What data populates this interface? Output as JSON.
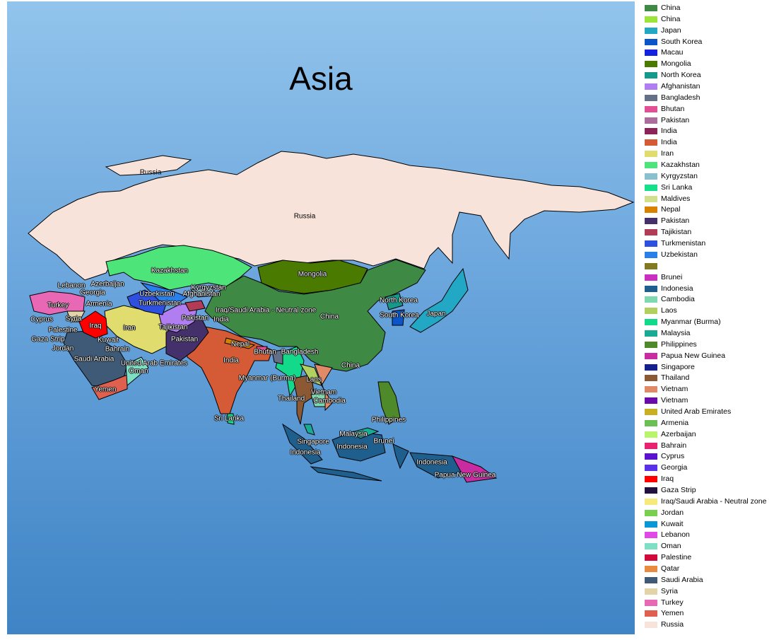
{
  "title": "Asia",
  "legend": {
    "placement": "right",
    "items": [
      {
        "label": "China",
        "color": "#3e8a44"
      },
      {
        "label": "China",
        "color": "#9be53a"
      },
      {
        "label": "Japan",
        "color": "#22a7c5"
      },
      {
        "label": "South Korea",
        "color": "#0a55c8"
      },
      {
        "label": "Macau",
        "color": "#1422e0"
      },
      {
        "label": "Mongolia",
        "color": "#4a7a00"
      },
      {
        "label": "North Korea",
        "color": "#14998a"
      },
      {
        "label": "Afghanistan",
        "color": "#b07ef0"
      },
      {
        "label": "Bangladesh",
        "color": "#656f85"
      },
      {
        "label": "Bhutan",
        "color": "#e24f94"
      },
      {
        "label": "Pakistan",
        "color": "#ac6c9c"
      },
      {
        "label": "India",
        "color": "#8c2358"
      },
      {
        "label": "India",
        "color": "#d45b35"
      },
      {
        "label": "Iran",
        "color": "#e0dd6e"
      },
      {
        "label": "Kazakhstan",
        "color": "#4de57a"
      },
      {
        "label": "Kyrgyzstan",
        "color": "#88c0d0"
      },
      {
        "label": "Sri Lanka",
        "color": "#13e088"
      },
      {
        "label": "Maldives",
        "color": "#d2df8c"
      },
      {
        "label": "Nepal",
        "color": "#d88300"
      },
      {
        "label": "Pakistan",
        "color": "#44306a"
      },
      {
        "label": "Tajikistan",
        "color": "#b23b55"
      },
      {
        "label": "Turkmenistan",
        "color": "#2d50e0"
      },
      {
        "label": "Uzbekistan",
        "color": "#2a80ea"
      },
      {
        "label": "",
        "color": "#827a22"
      },
      {
        "label": "Brunei",
        "color": "#c92fc0"
      },
      {
        "label": "Indonesia",
        "color": "#1f5f8e"
      },
      {
        "label": "Cambodia",
        "color": "#7fd8b0"
      },
      {
        "label": "Laos",
        "color": "#b2d060"
      },
      {
        "label": "Myanmar (Burma)",
        "color": "#13d98a"
      },
      {
        "label": "Malaysia",
        "color": "#1aab95"
      },
      {
        "label": "Philippines",
        "color": "#4e8a2a"
      },
      {
        "label": "Papua New Guinea",
        "color": "#c92ba0"
      },
      {
        "label": "Singapore",
        "color": "#14208e"
      },
      {
        "label": "Thailand",
        "color": "#8b5a35"
      },
      {
        "label": "Vietnam",
        "color": "#e08a68"
      },
      {
        "label": "Vietnam",
        "color": "#6a0aaa"
      },
      {
        "label": "United Arab Emirates",
        "color": "#c8b022"
      },
      {
        "label": "Armenia",
        "color": "#6cbf55"
      },
      {
        "label": "Azerbaijan",
        "color": "#b8f56a"
      },
      {
        "label": "Bahrain",
        "color": "#e8226e"
      },
      {
        "label": "Cyprus",
        "color": "#5a12d0"
      },
      {
        "label": "Georgia",
        "color": "#5a30ea"
      },
      {
        "label": "Iraq",
        "color": "#ff0000"
      },
      {
        "label": "Gaza Strip",
        "color": "#22103e"
      },
      {
        "label": "Iraq/Saudi Arabia - Neutral zone",
        "color": "#f8ea7a"
      },
      {
        "label": "Jordan",
        "color": "#78cf50"
      },
      {
        "label": "Kuwait",
        "color": "#0898d8"
      },
      {
        "label": "Lebanon",
        "color": "#e048e8"
      },
      {
        "label": "Oman",
        "color": "#7de0c5"
      },
      {
        "label": "Palestine",
        "color": "#d00a3a"
      },
      {
        "label": "Qatar",
        "color": "#e88a40"
      },
      {
        "label": "Saudi Arabia",
        "color": "#3f5a76"
      },
      {
        "label": "Syria",
        "color": "#e3d3a8"
      },
      {
        "label": "Turkey",
        "color": "#e868b5"
      },
      {
        "label": "Yemen",
        "color": "#e06050"
      },
      {
        "label": "Russia",
        "color": "#f8e3da"
      }
    ]
  },
  "map_labels": [
    "Russia",
    "Russia",
    "Kazakhstan",
    "Mongolia",
    "Lebanon",
    "Azerbaijan",
    "Georgia",
    "Kyrgyzstan",
    "Uzbekistan",
    "Afghanistan",
    "Turkey",
    "Armenia",
    "Turkmenistan",
    "Iraq/Saudi Arabia - Neutral zone",
    "Pakistan",
    "India",
    "China",
    "North Korea",
    "South Korea",
    "Japan",
    "Cyprus",
    "Syria",
    "Iraq",
    "Iran",
    "Tajikistan",
    "Palestine",
    "Gaza Strip",
    "Kuwait",
    "Pakistan",
    "Nepal",
    "Jordan",
    "Bahrain",
    "Bhutan",
    "Bangladesh",
    "Saudi Arabia",
    "United Arab Emirates",
    "Oman",
    "India",
    "China",
    "Myanmar (Burma)",
    "Laos",
    "Yemen",
    "Vietnam",
    "Thailand",
    "Cambodia",
    "Sri Lanka",
    "Philippines",
    "Malaysia",
    "Singapore",
    "Brunei",
    "Indonesia",
    "Indonesia",
    "Indonesia",
    "Papua New Guinea"
  ]
}
